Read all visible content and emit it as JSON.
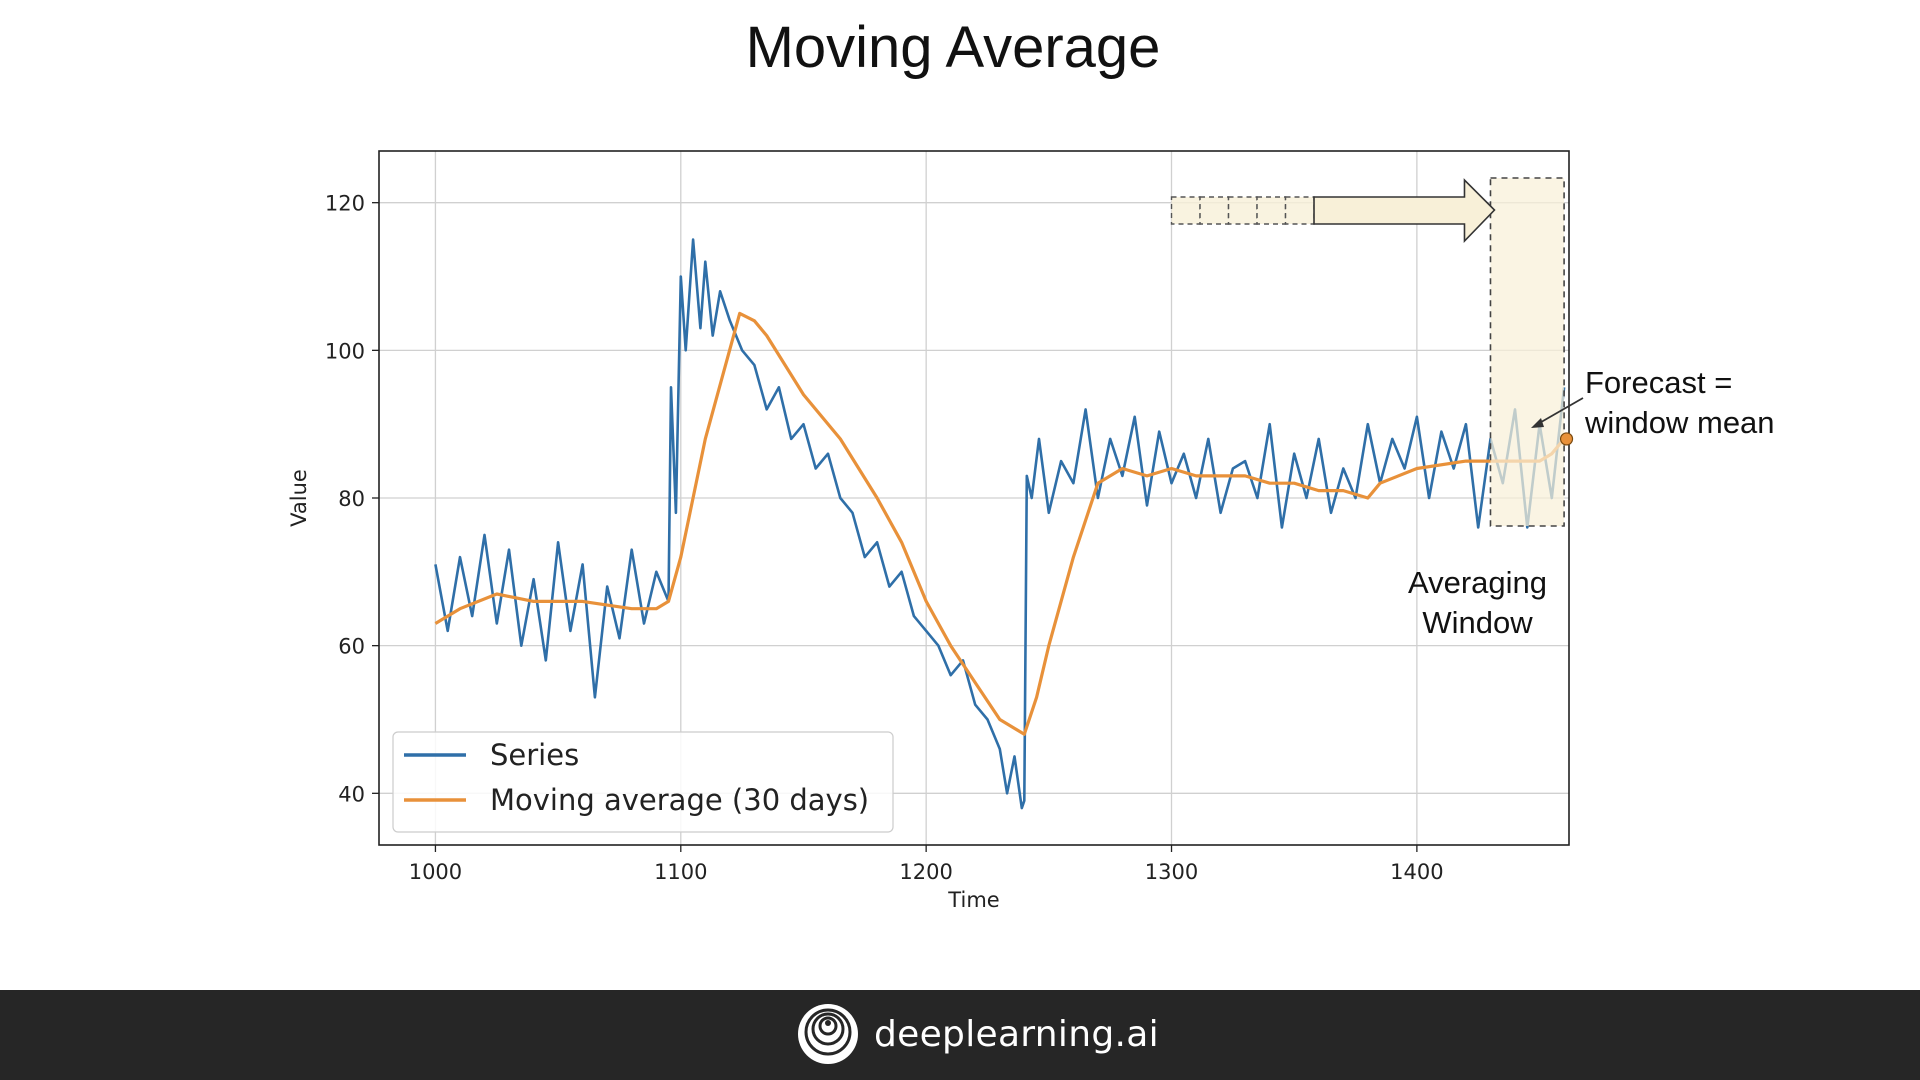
{
  "slide": {
    "title": "Moving Average",
    "brand": "deeplearning.ai"
  },
  "annotations": {
    "forecast_line1": "Forecast =",
    "forecast_line2": "window mean",
    "window_line1": "Averaging",
    "window_line2": "Window"
  },
  "colors": {
    "series": "#2f6fa8",
    "moving_average": "#e8913a",
    "window_fill": "#f8f0d8",
    "footer": "#262626"
  },
  "chart_data": {
    "type": "line",
    "xlabel": "Time",
    "ylabel": "Value",
    "xlim": [
      977,
      1462
    ],
    "ylim": [
      33,
      127
    ],
    "xticks": [
      1000,
      1100,
      1200,
      1300,
      1400
    ],
    "yticks": [
      40,
      60,
      80,
      100,
      120
    ],
    "grid": true,
    "legend_position": "bottom-left",
    "averaging_window": {
      "x_start": 1430,
      "x_end": 1460
    },
    "forecast_point": {
      "x": 1461,
      "y": 88
    },
    "series": [
      {
        "name": "Series",
        "x": [
          1000,
          1005,
          1010,
          1015,
          1020,
          1025,
          1030,
          1035,
          1040,
          1045,
          1050,
          1055,
          1060,
          1065,
          1070,
          1075,
          1080,
          1085,
          1090,
          1095,
          1096,
          1098,
          1100,
          1102,
          1105,
          1108,
          1110,
          1113,
          1116,
          1120,
          1125,
          1130,
          1135,
          1140,
          1145,
          1150,
          1155,
          1160,
          1165,
          1170,
          1175,
          1180,
          1185,
          1190,
          1195,
          1200,
          1205,
          1210,
          1215,
          1220,
          1225,
          1230,
          1233,
          1236,
          1239,
          1240,
          1241,
          1243,
          1246,
          1250,
          1255,
          1260,
          1265,
          1270,
          1275,
          1280,
          1285,
          1290,
          1295,
          1300,
          1305,
          1310,
          1315,
          1320,
          1325,
          1330,
          1335,
          1340,
          1345,
          1350,
          1355,
          1360,
          1365,
          1370,
          1375,
          1380,
          1385,
          1390,
          1395,
          1400,
          1405,
          1410,
          1415,
          1420,
          1425,
          1430,
          1435,
          1440,
          1445,
          1450,
          1455,
          1460
        ],
        "values": [
          71,
          62,
          72,
          64,
          75,
          63,
          73,
          60,
          69,
          58,
          74,
          62,
          71,
          53,
          68,
          61,
          73,
          63,
          70,
          66,
          95,
          78,
          110,
          100,
          115,
          103,
          112,
          102,
          108,
          104,
          100,
          98,
          92,
          95,
          88,
          90,
          84,
          86,
          80,
          78,
          72,
          74,
          68,
          70,
          64,
          62,
          60,
          56,
          58,
          52,
          50,
          46,
          40,
          45,
          38,
          39,
          83,
          80,
          88,
          78,
          85,
          82,
          92,
          80,
          88,
          83,
          91,
          79,
          89,
          82,
          86,
          80,
          88,
          78,
          84,
          85,
          80,
          90,
          76,
          86,
          80,
          88,
          78,
          84,
          80,
          90,
          82,
          88,
          84,
          91,
          80,
          89,
          84,
          90,
          76,
          88,
          82,
          92,
          76,
          90,
          80,
          95
        ]
      },
      {
        "name": "Moving average (30 days)",
        "x": [
          1000,
          1010,
          1025,
          1040,
          1060,
          1080,
          1090,
          1095,
          1100,
          1110,
          1124,
          1130,
          1135,
          1150,
          1165,
          1180,
          1190,
          1200,
          1210,
          1220,
          1230,
          1240,
          1245,
          1250,
          1260,
          1270,
          1280,
          1290,
          1300,
          1310,
          1320,
          1330,
          1340,
          1350,
          1360,
          1370,
          1380,
          1385,
          1400,
          1420,
          1440,
          1450,
          1455,
          1460
        ],
        "values": [
          63,
          65,
          67,
          66,
          66,
          65,
          65,
          66,
          72,
          88,
          105,
          104,
          102,
          94,
          88,
          80,
          74,
          66,
          60,
          55,
          50,
          48,
          53,
          60,
          72,
          82,
          84,
          83,
          84,
          83,
          83,
          83,
          82,
          82,
          81,
          81,
          80,
          82,
          84,
          85,
          85,
          85,
          86,
          88
        ]
      }
    ]
  }
}
